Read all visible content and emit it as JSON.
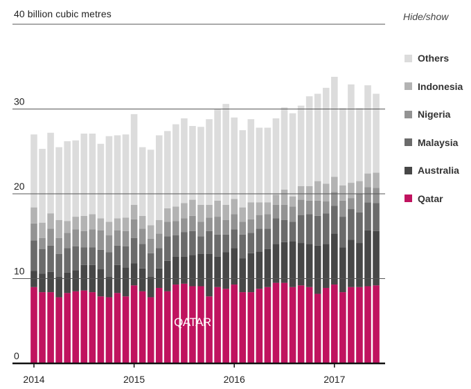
{
  "chart_data": {
    "type": "stacked-bar",
    "ylabel": "40 billion cubic metres",
    "ylim": [
      0,
      40
    ],
    "yticks": [
      0,
      10,
      20,
      30
    ],
    "xticks": [
      "2014",
      "2015",
      "2016",
      "2017"
    ],
    "x_start": "2014-01",
    "x_step": "month",
    "hide_show_label": "Hide/show",
    "annotation": "QATAR",
    "series": [
      {
        "name": "Qatar",
        "color": "#c0135f",
        "values": [
          9.0,
          8.4,
          8.4,
          7.8,
          8.3,
          8.5,
          8.6,
          8.4,
          7.9,
          7.8,
          8.3,
          7.9,
          9.2,
          8.5,
          7.8,
          8.9,
          8.5,
          9.3,
          9.4,
          9.1,
          9.1,
          7.9,
          9.0,
          8.8,
          9.3,
          8.4,
          8.4,
          8.8,
          9.0,
          9.5,
          9.5,
          9.0,
          9.2,
          9.0,
          8.2,
          8.9,
          9.3,
          8.4,
          9.0,
          9.0,
          9.1,
          9.2
        ]
      },
      {
        "name": "Australia",
        "color": "#474747",
        "values": [
          1.9,
          2.2,
          2.4,
          2.4,
          2.4,
          2.5,
          3.0,
          3.2,
          3.2,
          2.4,
          3.3,
          3.4,
          2.6,
          2.7,
          2.4,
          2.3,
          3.6,
          3.3,
          3.2,
          3.7,
          3.8,
          5.0,
          3.6,
          4.3,
          4.3,
          4.0,
          4.6,
          4.4,
          4.5,
          4.6,
          4.8,
          5.4,
          5.0,
          5.1,
          5.7,
          5.2,
          6.0,
          5.3,
          5.6,
          5.2,
          6.6,
          6.4
        ]
      },
      {
        "name": "Malaysia",
        "color": "#6b6b6b",
        "values": [
          3.6,
          2.9,
          3.1,
          2.7,
          2.9,
          2.8,
          2.1,
          2.1,
          2.3,
          2.9,
          2.3,
          2.5,
          3.0,
          2.9,
          2.8,
          2.4,
          2.9,
          2.5,
          2.9,
          2.8,
          2.1,
          2.7,
          2.6,
          2.1,
          2.2,
          2.8,
          2.4,
          2.7,
          2.4,
          3.0,
          2.6,
          2.3,
          3.3,
          3.5,
          3.5,
          3.6,
          3.3,
          3.6,
          3.6,
          3.6,
          3.3,
          3.3
        ]
      },
      {
        "name": "Nigeria",
        "color": "#939393",
        "values": [
          2.0,
          1.3,
          2.0,
          1.9,
          1.8,
          2.0,
          1.9,
          2.1,
          2.3,
          2.0,
          1.8,
          1.8,
          2.2,
          1.8,
          1.7,
          1.7,
          1.7,
          1.7,
          1.6,
          1.8,
          1.7,
          1.6,
          2.1,
          1.7,
          1.8,
          1.5,
          1.6,
          1.6,
          1.7,
          1.6,
          1.8,
          1.8,
          1.8,
          1.6,
          1.8,
          1.4,
          1.6,
          1.9,
          1.3,
          2.2,
          1.8,
          1.8
        ]
      },
      {
        "name": "Indonesia",
        "color": "#b3b3b3",
        "values": [
          1.9,
          1.8,
          1.8,
          2.1,
          1.4,
          1.5,
          1.8,
          1.8,
          1.4,
          1.6,
          1.4,
          1.6,
          1.7,
          1.5,
          1.6,
          1.6,
          1.6,
          1.7,
          1.8,
          1.9,
          2.0,
          1.5,
          1.9,
          1.8,
          1.8,
          1.7,
          2.0,
          1.5,
          1.4,
          1.2,
          1.8,
          1.2,
          1.6,
          1.7,
          2.3,
          2.1,
          1.8,
          1.8,
          1.8,
          1.5,
          1.6,
          1.8
        ]
      },
      {
        "name": "Others",
        "color": "#dcdcdc",
        "values": [
          8.6,
          8.7,
          9.5,
          8.6,
          9.4,
          9.0,
          9.7,
          9.5,
          8.8,
          10.1,
          9.8,
          9.8,
          10.7,
          8.1,
          8.9,
          10.0,
          9.1,
          9.7,
          10.0,
          8.7,
          9.2,
          10.1,
          10.8,
          11.9,
          9.6,
          9.1,
          9.8,
          8.8,
          8.8,
          9.0,
          9.7,
          9.8,
          9.5,
          10.6,
          10.3,
          11.3,
          11.8,
          9.1,
          11.6,
          8.6,
          10.4,
          9.3
        ]
      }
    ]
  }
}
